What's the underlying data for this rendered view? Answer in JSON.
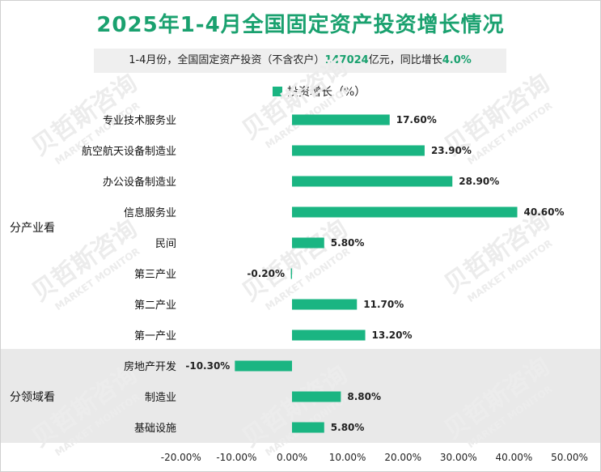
{
  "title": "2025年1-4月全国固定资产投资增长情况",
  "subtitle": {
    "prefix": "1-4月份，全国固定资产投资（不含农户）",
    "amount": "147024",
    "mid": "亿元，同比增长",
    "rate": "4.0%"
  },
  "watermark": {
    "cn": "贝哲斯咨询",
    "en": "MARKET MONITOR"
  },
  "colors": {
    "bar": "#1ab582",
    "title": "#1aa16f",
    "band": "#e9e9e9"
  },
  "chart_data": {
    "type": "bar",
    "orientation": "horizontal",
    "legend": "投资增长（%）",
    "legend_position": "top-center",
    "categories": [
      "专业技术服务业",
      "航空航天设备制造业",
      "办公设备制造业",
      "信息服务业",
      "民间",
      "第三产业",
      "第二产业",
      "第一产业",
      "房地产开发",
      "制造业",
      "基础设施"
    ],
    "values": [
      17.6,
      23.9,
      28.9,
      40.6,
      5.8,
      -0.2,
      11.7,
      13.2,
      -10.3,
      8.8,
      5.8
    ],
    "value_labels": [
      "17.60%",
      "23.90%",
      "28.90%",
      "40.60%",
      "5.80%",
      "-0.20%",
      "11.70%",
      "13.20%",
      "-10.30%",
      "8.80%",
      "5.80%"
    ],
    "groups": [
      {
        "name": "分产业看",
        "first": 0,
        "last": 7
      },
      {
        "name": "分领域看",
        "first": 8,
        "last": 10
      }
    ],
    "xlim": [
      -20,
      50
    ],
    "xticks": [
      -20,
      -10,
      0,
      10,
      20,
      30,
      40,
      50
    ],
    "xtick_labels": [
      "-20.00%",
      "-10.00%",
      "0.00%",
      "10.00%",
      "20.00%",
      "30.00%",
      "40.00%",
      "50.00%"
    ],
    "grid": false
  }
}
